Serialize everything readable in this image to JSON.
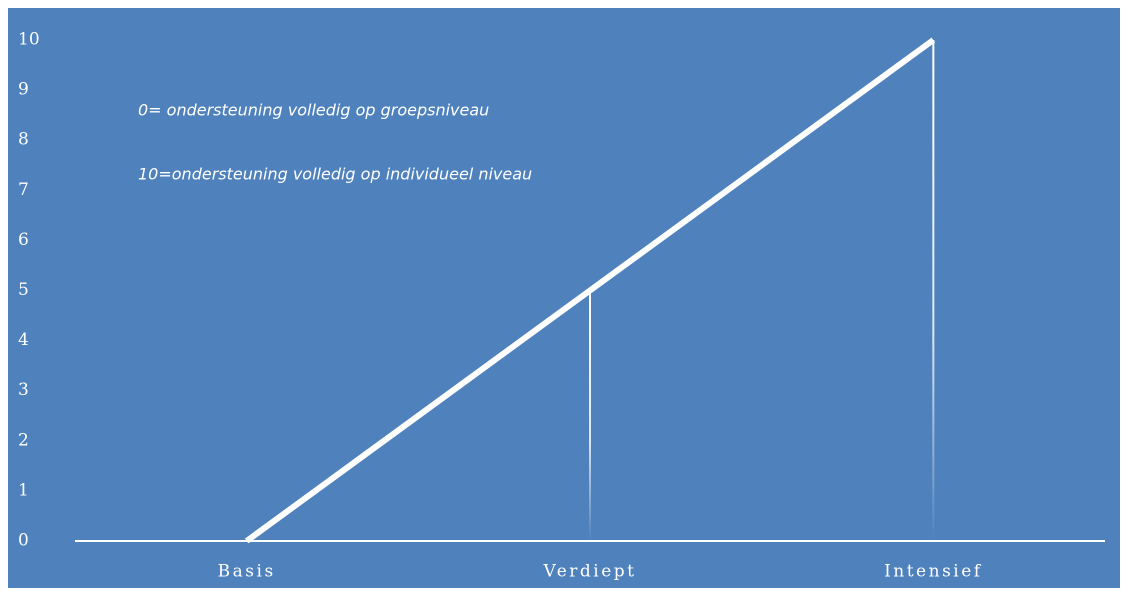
{
  "chart_data": {
    "type": "line",
    "categories": [
      "Basis",
      "Verdiept",
      "Intensief"
    ],
    "values": [
      0,
      5,
      10
    ],
    "color": "#ffffff",
    "ylim": [
      0,
      10
    ],
    "yticks": [
      0,
      1,
      2,
      3,
      4,
      5,
      6,
      7,
      8,
      9,
      10
    ],
    "grid": false,
    "annotations": [
      "0= ondersteuning volledig op groepsniveau",
      "10=ondersteuning volledig op individueel niveau"
    ]
  }
}
